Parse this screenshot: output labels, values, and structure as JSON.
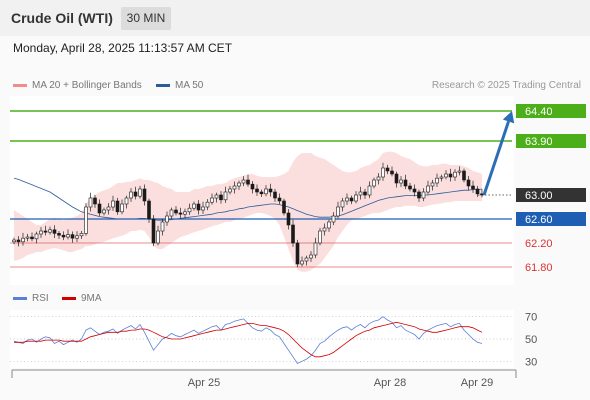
{
  "header": {
    "title": "Crude Oil (WTI)",
    "timeframe": "30 MIN"
  },
  "timestamp": "Monday, April 28, 2025 11:13:57 AM CET",
  "legend": {
    "main": [
      {
        "name": "MA 20 + Bollinger Bands",
        "color": "#f28b8b"
      },
      {
        "name": "MA 50",
        "color": "#2c5c99"
      }
    ],
    "rsi": [
      {
        "name": "RSI",
        "color": "#5b7fd6"
      },
      {
        "name": "9MA",
        "color": "#d40000"
      }
    ]
  },
  "credit": "Research © 2025 Trading Central",
  "colors": {
    "resistance": "#4caf1a",
    "support": "#1f5fb3",
    "projection": "#2c6db5",
    "last": "#333333",
    "band": "#fbdede"
  },
  "chart_data": [
    {
      "type": "candlestick",
      "ylim": [
        61.5,
        64.65
      ],
      "levels": [
        {
          "label": "64.40",
          "value": 64.4,
          "kind": "resistance"
        },
        {
          "label": "63.90",
          "value": 63.9,
          "kind": "resistance"
        },
        {
          "label": "63.00",
          "value": 63.0,
          "kind": "last"
        },
        {
          "label": "62.60",
          "value": 62.6,
          "kind": "support-strong"
        },
        {
          "label": "62.20",
          "value": 62.2,
          "kind": "support"
        },
        {
          "label": "61.80",
          "value": 61.8,
          "kind": "support"
        }
      ],
      "close": [
        62.25,
        62.22,
        62.28,
        62.3,
        62.27,
        62.35,
        62.4,
        62.38,
        62.42,
        62.36,
        62.33,
        62.3,
        62.34,
        62.28,
        62.32,
        62.36,
        62.8,
        62.95,
        62.85,
        62.7,
        62.75,
        62.8,
        62.9,
        62.72,
        62.85,
        62.95,
        63.05,
        62.98,
        63.1,
        62.9,
        62.6,
        62.2,
        62.4,
        62.55,
        62.65,
        62.75,
        62.7,
        62.68,
        62.72,
        62.78,
        62.85,
        62.75,
        62.8,
        62.88,
        62.95,
        63.0,
        62.92,
        63.05,
        63.1,
        63.15,
        63.2,
        63.25,
        63.18,
        63.1,
        63.05,
        63.02,
        63.1,
        63.05,
        62.95,
        62.9,
        62.7,
        62.5,
        62.2,
        61.85,
        61.9,
        61.95,
        62.0,
        62.2,
        62.4,
        62.45,
        62.55,
        62.65,
        62.8,
        62.9,
        62.95,
        62.9,
        63.0,
        63.05,
        63.0,
        63.15,
        63.25,
        63.3,
        63.45,
        63.4,
        63.35,
        63.2,
        63.25,
        63.15,
        63.1,
        63.05,
        62.95,
        63.05,
        63.15,
        63.2,
        63.28,
        63.3,
        63.35,
        63.3,
        63.38,
        63.4,
        63.25,
        63.15,
        63.1,
        63.02,
        63.0
      ],
      "bands": {
        "upper": [
          62.75,
          62.7,
          62.65,
          62.6,
          62.55,
          62.5,
          62.5,
          62.55,
          62.6,
          62.62,
          62.6,
          62.58,
          62.6,
          62.62,
          62.65,
          62.7,
          62.85,
          62.95,
          63.0,
          63.05,
          63.08,
          63.1,
          63.15,
          63.2,
          63.2,
          63.22,
          63.22,
          63.25,
          63.28,
          63.25,
          63.25,
          63.22,
          63.2,
          63.15,
          63.12,
          63.1,
          63.05,
          63.05,
          63.05,
          63.05,
          63.1,
          63.1,
          63.12,
          63.15,
          63.15,
          63.18,
          63.18,
          63.2,
          63.25,
          63.28,
          63.3,
          63.32,
          63.35,
          63.35,
          63.32,
          63.3,
          63.3,
          63.3,
          63.3,
          63.32,
          63.35,
          63.4,
          63.55,
          63.65,
          63.7,
          63.7,
          63.7,
          63.65,
          63.62,
          63.6,
          63.55,
          63.5,
          63.45,
          63.4,
          63.38,
          63.38,
          63.4,
          63.45,
          63.48,
          63.5,
          63.55,
          63.6,
          63.7,
          63.72,
          63.72,
          63.7,
          63.65,
          63.62,
          63.6,
          63.55,
          63.5,
          63.48,
          63.48,
          63.5,
          63.5,
          63.52,
          63.52,
          63.5,
          63.5,
          63.5,
          63.48,
          63.45,
          63.4,
          63.38,
          63.35
        ],
        "lower": [
          61.9,
          61.92,
          61.95,
          62.0,
          62.02,
          62.05,
          62.05,
          62.08,
          62.1,
          62.12,
          62.1,
          62.08,
          62.05,
          62.05,
          62.08,
          62.1,
          62.15,
          62.15,
          62.18,
          62.2,
          62.22,
          62.25,
          62.28,
          62.3,
          62.32,
          62.35,
          62.4,
          62.4,
          62.42,
          62.4,
          62.3,
          62.15,
          62.1,
          62.1,
          62.15,
          62.2,
          62.25,
          62.3,
          62.32,
          62.35,
          62.38,
          62.4,
          62.42,
          62.45,
          62.48,
          62.5,
          62.52,
          62.55,
          62.55,
          62.58,
          62.6,
          62.62,
          62.65,
          62.68,
          62.7,
          62.7,
          62.68,
          62.65,
          62.6,
          62.5,
          62.3,
          62.1,
          61.9,
          61.75,
          61.72,
          61.72,
          61.75,
          61.8,
          61.85,
          61.95,
          62.05,
          62.15,
          62.3,
          62.4,
          62.5,
          62.58,
          62.6,
          62.62,
          62.65,
          62.68,
          62.7,
          62.7,
          62.72,
          62.75,
          62.78,
          62.8,
          62.8,
          62.82,
          62.82,
          62.82,
          62.8,
          62.8,
          62.82,
          62.84,
          62.85,
          62.86,
          62.88,
          62.88,
          62.9,
          62.9,
          62.9,
          62.9,
          62.9,
          62.9,
          62.9
        ]
      },
      "ma50": [
        63.28,
        63.26,
        63.23,
        63.2,
        63.17,
        63.14,
        63.11,
        63.08,
        63.05,
        63.0,
        62.95,
        62.9,
        62.85,
        62.8,
        62.76,
        62.72,
        62.7,
        62.68,
        62.66,
        62.64,
        62.63,
        62.62,
        62.61,
        62.6,
        62.6,
        62.6,
        62.6,
        62.6,
        62.61,
        62.61,
        62.6,
        62.59,
        62.58,
        62.58,
        62.58,
        62.59,
        62.6,
        62.61,
        62.62,
        62.63,
        62.64,
        62.65,
        62.66,
        62.67,
        62.68,
        62.7,
        62.71,
        62.72,
        62.74,
        62.75,
        62.77,
        62.78,
        62.8,
        62.81,
        62.82,
        62.83,
        62.84,
        62.85,
        62.85,
        62.84,
        62.82,
        62.8,
        62.77,
        62.74,
        62.71,
        62.68,
        62.66,
        62.64,
        62.63,
        62.63,
        62.63,
        62.64,
        62.65,
        62.67,
        62.7,
        62.73,
        62.76,
        62.79,
        62.82,
        62.85,
        62.88,
        62.91,
        62.93,
        62.95,
        62.96,
        62.97,
        62.98,
        62.99,
        62.99,
        62.99,
        62.99,
        63.0,
        63.0,
        63.01,
        63.02,
        63.03,
        63.04,
        63.05,
        63.06,
        63.07,
        63.08,
        63.08,
        63.09,
        63.09,
        63.1
      ],
      "projection": {
        "from": 63.0,
        "to": 64.4
      }
    },
    {
      "type": "line",
      "ylim": [
        24,
        76
      ],
      "yticks": [
        70,
        50,
        30
      ],
      "x_labels": [
        "Apr 25",
        "Apr 28",
        "Apr 29"
      ],
      "rsi": [
        48,
        47,
        46,
        49,
        50,
        47,
        50,
        52,
        51,
        46,
        48,
        45,
        47,
        49,
        47,
        50,
        58,
        60,
        57,
        54,
        56,
        57,
        59,
        55,
        58,
        60,
        62,
        59,
        63,
        56,
        48,
        40,
        45,
        50,
        52,
        55,
        53,
        52,
        54,
        56,
        58,
        55,
        57,
        59,
        61,
        62,
        58,
        63,
        64,
        66,
        67,
        68,
        64,
        60,
        58,
        57,
        60,
        58,
        54,
        52,
        46,
        40,
        34,
        28,
        30,
        32,
        35,
        40,
        46,
        48,
        52,
        55,
        58,
        60,
        61,
        58,
        61,
        63,
        60,
        64,
        66,
        67,
        70,
        67,
        65,
        60,
        62,
        58,
        56,
        54,
        50,
        55,
        58,
        60,
        62,
        63,
        64,
        61,
        63,
        64,
        58,
        54,
        50,
        47,
        46
      ],
      "ma9": [
        47,
        47,
        47,
        48,
        48,
        48,
        48,
        49,
        49,
        49,
        49,
        48,
        48,
        48,
        48,
        48,
        50,
        52,
        53,
        54,
        55,
        56,
        56,
        56,
        57,
        57,
        58,
        58,
        59,
        59,
        58,
        56,
        54,
        52,
        51,
        50,
        50,
        50,
        51,
        52,
        53,
        54,
        55,
        56,
        57,
        58,
        58,
        59,
        60,
        61,
        62,
        63,
        64,
        64,
        63,
        62,
        62,
        61,
        60,
        59,
        57,
        54,
        50,
        46,
        42,
        39,
        36,
        34,
        34,
        35,
        36,
        38,
        41,
        44,
        47,
        50,
        53,
        55,
        57,
        58,
        60,
        61,
        62,
        63,
        64,
        65,
        64,
        63,
        62,
        61,
        59,
        58,
        57,
        56,
        56,
        57,
        58,
        59,
        60,
        61,
        61,
        61,
        60,
        58,
        56
      ]
    }
  ]
}
